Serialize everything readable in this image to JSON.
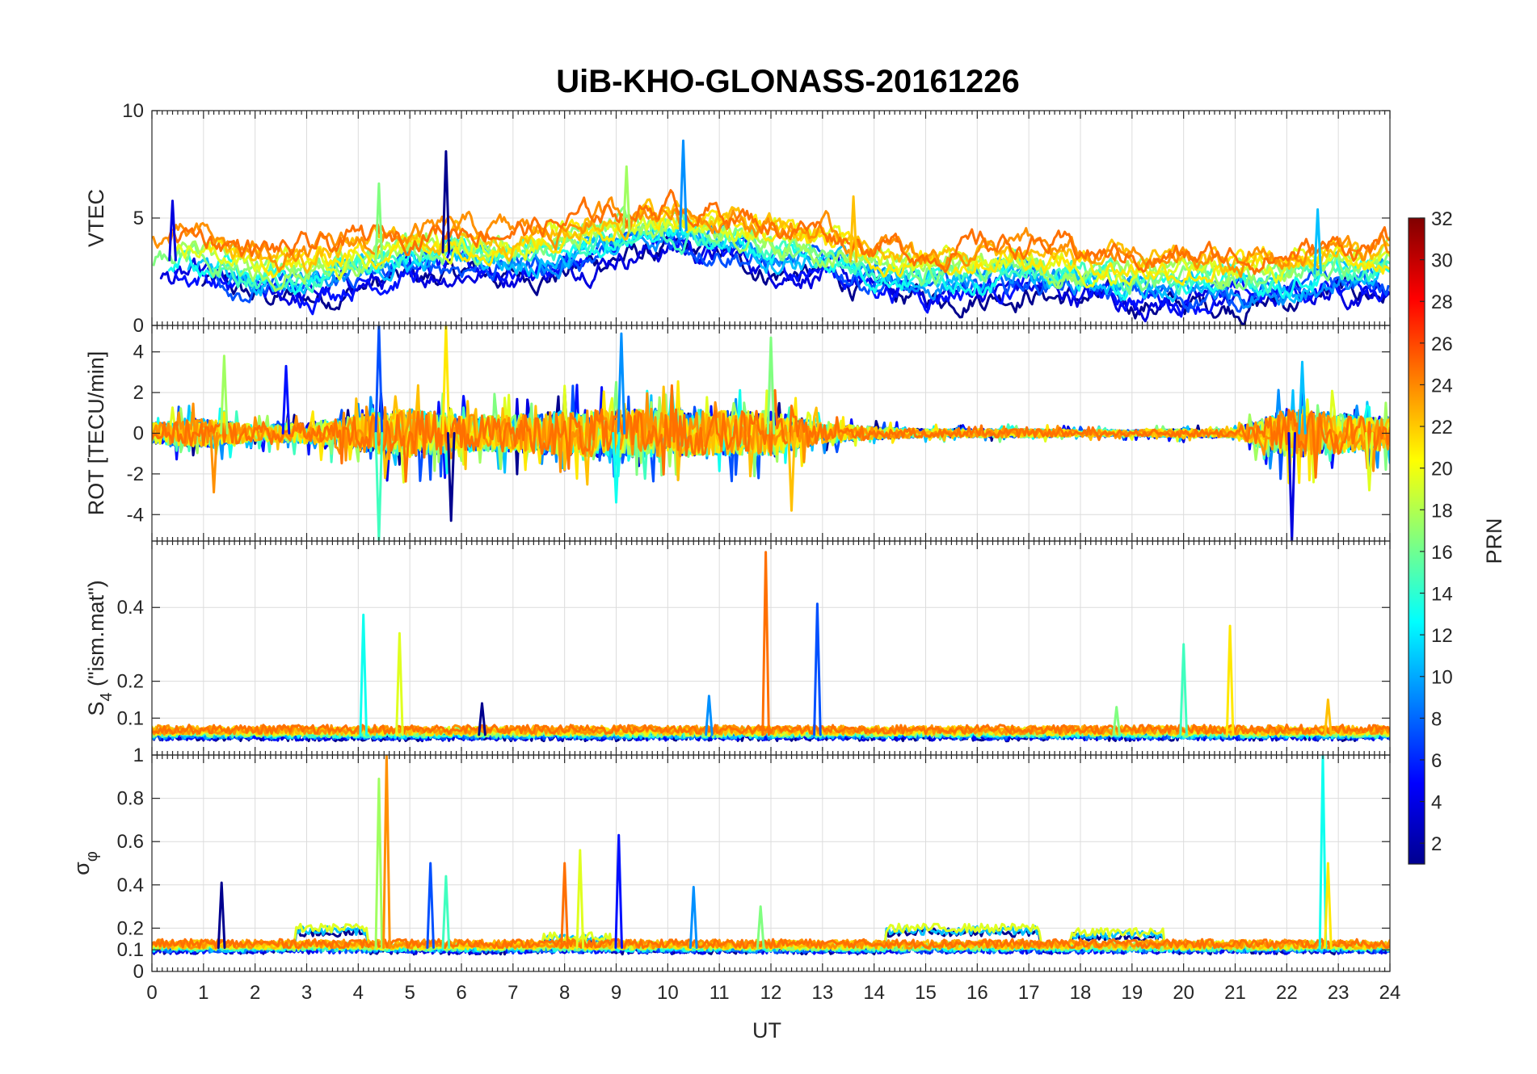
{
  "chart_data": {
    "type": "line",
    "title": "UiB-KHO-GLONASS-20161226",
    "xlabel": "UT",
    "xlim": [
      0,
      24
    ],
    "xticks": [
      "0",
      "1",
      "2",
      "3",
      "4",
      "5",
      "6",
      "7",
      "8",
      "9",
      "10",
      "11",
      "12",
      "13",
      "14",
      "15",
      "16",
      "17",
      "18",
      "19",
      "20",
      "21",
      "22",
      "23",
      "24"
    ],
    "grid": true,
    "panels": [
      {
        "id": "vtec",
        "ylabel": "VTEC",
        "ylim": [
          0,
          10
        ],
        "yticks": [
          {
            "v": 0,
            "t": "0"
          },
          {
            "v": 5,
            "t": "5"
          },
          {
            "v": 10,
            "t": "10"
          }
        ],
        "base": [
          [
            0,
            3.0
          ],
          [
            1,
            3.1
          ],
          [
            2,
            2.4
          ],
          [
            3,
            2.3
          ],
          [
            4,
            2.9
          ],
          [
            5,
            3.2
          ],
          [
            6,
            3.5
          ],
          [
            7,
            3.4
          ],
          [
            8,
            3.6
          ],
          [
            9,
            4.3
          ],
          [
            10,
            4.5
          ],
          [
            11,
            4.3
          ],
          [
            12,
            3.6
          ],
          [
            13,
            3.4
          ],
          [
            14,
            2.7
          ],
          [
            15,
            2.3
          ],
          [
            16,
            2.6
          ],
          [
            17,
            2.7
          ],
          [
            18,
            2.3
          ],
          [
            19,
            2.1
          ],
          [
            20,
            2.0
          ],
          [
            21,
            2.1
          ],
          [
            22,
            2.2
          ],
          [
            23,
            2.6
          ],
          [
            24,
            2.6
          ]
        ],
        "spread": 1.1,
        "noise": 0.35,
        "spikes": [
          {
            "x": 5.7,
            "y": 8.1
          },
          {
            "x": 10.3,
            "y": 8.6
          },
          {
            "x": 4.4,
            "y": 6.6
          },
          {
            "x": 13.6,
            "y": 6.0
          },
          {
            "x": 0.4,
            "y": 5.8
          },
          {
            "x": 22.6,
            "y": 5.4
          },
          {
            "x": 9.2,
            "y": 7.4
          }
        ]
      },
      {
        "id": "rot",
        "ylabel": "ROT [TECU/min]",
        "ylim": [
          -5.3,
          5.3
        ],
        "yticks": [
          {
            "v": -4,
            "t": "-4"
          },
          {
            "v": -2,
            "t": "-2"
          },
          {
            "v": 0,
            "t": "0"
          },
          {
            "v": 2,
            "t": "2"
          },
          {
            "v": 4,
            "t": "4"
          }
        ],
        "base": [
          [
            0,
            0
          ],
          [
            24,
            0
          ]
        ],
        "activity": [
          [
            0,
            0.5
          ],
          [
            1,
            0.7
          ],
          [
            2,
            0.4
          ],
          [
            3,
            0.5
          ],
          [
            4,
            0.9
          ],
          [
            5,
            1.2
          ],
          [
            6,
            0.9
          ],
          [
            7,
            0.9
          ],
          [
            8,
            1.1
          ],
          [
            9,
            1.2
          ],
          [
            10,
            1.2
          ],
          [
            11,
            1.1
          ],
          [
            12,
            1.1
          ],
          [
            13,
            0.5
          ],
          [
            14,
            0.3
          ],
          [
            15,
            0.2
          ],
          [
            16,
            0.2
          ],
          [
            17,
            0.2
          ],
          [
            18,
            0.15
          ],
          [
            19,
            0.15
          ],
          [
            20,
            0.2
          ],
          [
            21,
            0.2
          ],
          [
            22,
            1.2
          ],
          [
            23,
            1.0
          ],
          [
            24,
            0.8
          ]
        ],
        "spikes": [
          {
            "x": 4.4,
            "y": 5.3
          },
          {
            "x": 4.4,
            "y": -5.3
          },
          {
            "x": 5.7,
            "y": 5.3
          },
          {
            "x": 5.8,
            "y": -4.3
          },
          {
            "x": 9.1,
            "y": 4.9
          },
          {
            "x": 12.0,
            "y": 4.7
          },
          {
            "x": 12.4,
            "y": -3.8
          },
          {
            "x": 22.1,
            "y": -5.3
          },
          {
            "x": 22.3,
            "y": 3.5
          },
          {
            "x": 1.4,
            "y": 3.8
          },
          {
            "x": 1.2,
            "y": -2.9
          },
          {
            "x": 2.6,
            "y": 3.3
          },
          {
            "x": 9.0,
            "y": -3.4
          },
          {
            "x": 23.6,
            "y": -2.8
          }
        ]
      },
      {
        "id": "s4",
        "ylabel": "S4 (\"ism.mat\")",
        "ylabel_main": "S",
        "ylabel_sub": "4",
        "ylabel_rest": " (\"ism.mat\")",
        "ylim": [
          0.0,
          0.58
        ],
        "yticks": [
          {
            "v": 0.1,
            "t": "0.1"
          },
          {
            "v": 0.2,
            "t": "0.2"
          },
          {
            "v": 0.4,
            "t": "0.4"
          }
        ],
        "base": [
          [
            0,
            0.055
          ],
          [
            24,
            0.055
          ]
        ],
        "noise": 0.012,
        "spikes": [
          {
            "x": 4.1,
            "y": 0.38
          },
          {
            "x": 4.8,
            "y": 0.33
          },
          {
            "x": 11.9,
            "y": 0.55
          },
          {
            "x": 12.9,
            "y": 0.41
          },
          {
            "x": 20.0,
            "y": 0.3
          },
          {
            "x": 20.9,
            "y": 0.35
          },
          {
            "x": 6.4,
            "y": 0.14
          },
          {
            "x": 10.8,
            "y": 0.16
          },
          {
            "x": 18.7,
            "y": 0.13
          },
          {
            "x": 22.8,
            "y": 0.15
          }
        ]
      },
      {
        "id": "sigphi",
        "ylabel": "σ φ",
        "ylabel_main": "σ",
        "ylabel_sub": "φ",
        "ylim": [
          0,
          1
        ],
        "yticks": [
          {
            "v": 0,
            "t": "0"
          },
          {
            "v": 0.1,
            "t": "0.1"
          },
          {
            "v": 0.2,
            "t": "0.2"
          },
          {
            "v": 0.4,
            "t": "0.4"
          },
          {
            "v": 0.6,
            "t": "0.6"
          },
          {
            "v": 0.8,
            "t": "0.8"
          },
          {
            "v": 1,
            "t": "1"
          }
        ],
        "base": [
          [
            0,
            0.11
          ],
          [
            24,
            0.11
          ]
        ],
        "noise": 0.02,
        "blocks": [
          [
            2.8,
            4.2,
            0.19
          ],
          [
            14.2,
            17.2,
            0.19
          ],
          [
            17.8,
            19.6,
            0.17
          ],
          [
            7.6,
            8.9,
            0.15
          ]
        ],
        "spikes": [
          {
            "x": 4.4,
            "y": 0.89
          },
          {
            "x": 4.55,
            "y": 1.0
          },
          {
            "x": 9.05,
            "y": 0.63
          },
          {
            "x": 22.7,
            "y": 1.0
          },
          {
            "x": 8.3,
            "y": 0.56
          },
          {
            "x": 8.0,
            "y": 0.5
          },
          {
            "x": 5.4,
            "y": 0.5
          },
          {
            "x": 5.7,
            "y": 0.44
          },
          {
            "x": 22.8,
            "y": 0.5
          },
          {
            "x": 1.35,
            "y": 0.41
          },
          {
            "x": 10.5,
            "y": 0.39
          },
          {
            "x": 11.8,
            "y": 0.3
          }
        ]
      }
    ],
    "series": [
      {
        "name": "1",
        "color": "#00008f"
      },
      {
        "name": "2",
        "color": "#0000df"
      },
      {
        "name": "3",
        "color": "#0010ff"
      },
      {
        "name": "5",
        "color": "#0050ff"
      },
      {
        "name": "7",
        "color": "#0090ff"
      },
      {
        "name": "9",
        "color": "#00c0ff"
      },
      {
        "name": "11",
        "color": "#10ffef"
      },
      {
        "name": "13",
        "color": "#40ffbf"
      },
      {
        "name": "15",
        "color": "#80ff80"
      },
      {
        "name": "17",
        "color": "#a0ff60"
      },
      {
        "name": "19",
        "color": "#e0ff20"
      },
      {
        "name": "20",
        "color": "#ffe800"
      },
      {
        "name": "21",
        "color": "#ffc000"
      },
      {
        "name": "23",
        "color": "#ff9000"
      },
      {
        "name": "24",
        "color": "#ff7000"
      }
    ],
    "colorbar": {
      "label": "PRN",
      "min": 1,
      "max": 32,
      "ticks": [
        "2",
        "4",
        "6",
        "8",
        "10",
        "12",
        "14",
        "16",
        "18",
        "20",
        "22",
        "24",
        "26",
        "28",
        "30",
        "32"
      ],
      "colors": [
        "#00008f",
        "#0000ff",
        "#0080ff",
        "#00ffff",
        "#80ff80",
        "#ffff00",
        "#ff8000",
        "#ff0000",
        "#800000"
      ]
    }
  }
}
